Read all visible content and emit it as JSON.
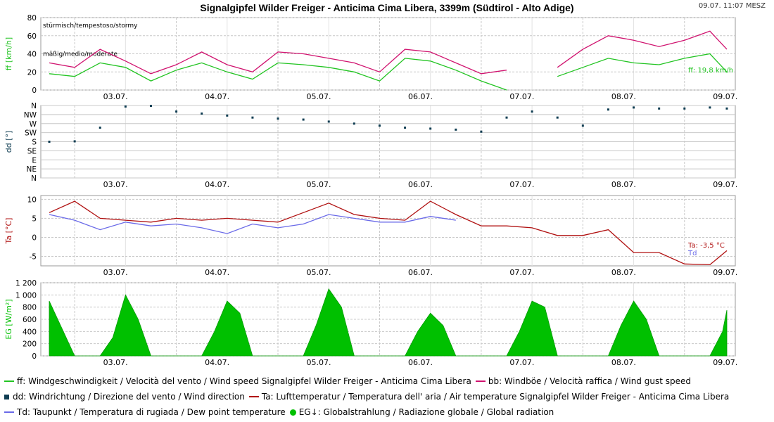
{
  "header": {
    "title": "Signalgipfel Wilder Freiger - Anticima Cima Libera, 3399m (Südtirol - Alto Adige)",
    "timestamp": "09.07. 11:07 MESZ"
  },
  "x_tick_labels": [
    "03.07.",
    "04.07.",
    "05.07.",
    "06.07.",
    "07.07.",
    "08.07.",
    "09.07."
  ],
  "colors": {
    "wind_speed": "#22c422",
    "wind_gust": "#d0136f",
    "wind_dir": "#0f3d52",
    "air_temp": "#b01010",
    "dew_point": "#6a6ae8",
    "radiation": "#00c000",
    "grid": "#c8c8c8",
    "frame": "#9a9a9a"
  },
  "chart_data": [
    {
      "type": "line",
      "ylabel": "ff [km/h]",
      "ylim": [
        0,
        80
      ],
      "yticks": [
        0,
        20,
        40,
        60,
        80
      ],
      "zones": [
        "stürmisch/tempestoso/stormy",
        "mäßig/medio/moderate"
      ],
      "current_label": "ff: 19,8 km/h",
      "x": [
        "02.07. 18:00",
        "03.07. 00:00",
        "03.07. 06:00",
        "03.07. 12:00",
        "03.07. 18:00",
        "04.07. 00:00",
        "04.07. 06:00",
        "04.07. 12:00",
        "04.07. 18:00",
        "05.07. 00:00",
        "05.07. 06:00",
        "05.07. 12:00",
        "05.07. 18:00",
        "06.07. 00:00",
        "06.07. 06:00",
        "06.07. 12:00",
        "06.07. 18:00",
        "07.07. 00:00",
        "07.07. 06:00",
        "07.07. 12:00",
        "07.07. 18:00",
        "08.07. 00:00",
        "08.07. 06:00",
        "08.07. 12:00",
        "08.07. 18:00",
        "09.07. 00:00",
        "09.07. 06:00",
        "09.07. 10:00"
      ],
      "series": [
        {
          "name": "ff",
          "values": [
            18,
            15,
            30,
            25,
            10,
            22,
            30,
            20,
            12,
            30,
            28,
            25,
            20,
            10,
            35,
            32,
            22,
            10,
            0,
            null,
            15,
            25,
            35,
            30,
            28,
            35,
            40,
            20
          ]
        },
        {
          "name": "bb",
          "values": [
            30,
            25,
            45,
            32,
            18,
            28,
            42,
            28,
            20,
            42,
            40,
            35,
            30,
            20,
            45,
            42,
            30,
            18,
            22,
            null,
            25,
            45,
            60,
            55,
            48,
            55,
            65,
            45
          ]
        }
      ]
    },
    {
      "type": "scatter",
      "ylabel": "dd [°]",
      "yticks": [
        "N",
        "NW",
        "W",
        "SW",
        "S",
        "SE",
        "E",
        "NE",
        "N"
      ],
      "ylim": [
        0,
        360
      ],
      "x": [
        "02.07. 18:00",
        "03.07. 00:00",
        "03.07. 06:00",
        "03.07. 12:00",
        "03.07. 18:00",
        "04.07. 00:00",
        "04.07. 06:00",
        "04.07. 12:00",
        "04.07. 18:00",
        "05.07. 00:00",
        "05.07. 06:00",
        "05.07. 12:00",
        "05.07. 18:00",
        "06.07. 00:00",
        "06.07. 06:00",
        "06.07. 12:00",
        "06.07. 18:00",
        "07.07. 00:00",
        "07.07. 06:00",
        "07.07. 12:00",
        "07.07. 18:00",
        "08.07. 00:00",
        "08.07. 06:00",
        "08.07. 12:00",
        "08.07. 18:00",
        "09.07. 00:00",
        "09.07. 06:00",
        "09.07. 10:00"
      ],
      "series": [
        {
          "name": "dd",
          "values": [
            180,
            182,
            250,
            355,
            358,
            330,
            320,
            310,
            300,
            295,
            290,
            280,
            270,
            260,
            250,
            245,
            240,
            230,
            300,
            330,
            300,
            260,
            340,
            350,
            345,
            345,
            350,
            345
          ]
        }
      ]
    },
    {
      "type": "line",
      "ylabel": "Ta [°C]",
      "ylim": [
        -7.5,
        11
      ],
      "yticks": [
        -5,
        0,
        5,
        10
      ],
      "current_label": "Ta: -3,5 °C",
      "dew_label": "Td",
      "x": [
        "02.07. 18:00",
        "03.07. 00:00",
        "03.07. 06:00",
        "03.07. 12:00",
        "03.07. 18:00",
        "04.07. 00:00",
        "04.07. 06:00",
        "04.07. 12:00",
        "04.07. 18:00",
        "05.07. 00:00",
        "05.07. 06:00",
        "05.07. 12:00",
        "05.07. 18:00",
        "06.07. 00:00",
        "06.07. 06:00",
        "06.07. 12:00",
        "06.07. 18:00",
        "07.07. 00:00",
        "07.07. 06:00",
        "07.07. 12:00",
        "07.07. 18:00",
        "08.07. 00:00",
        "08.07. 06:00",
        "08.07. 12:00",
        "08.07. 18:00",
        "09.07. 00:00",
        "09.07. 06:00",
        "09.07. 10:00"
      ],
      "series": [
        {
          "name": "Ta",
          "values": [
            6.5,
            9.5,
            5.0,
            4.5,
            4.0,
            5.0,
            4.5,
            5.0,
            4.5,
            4.0,
            6.5,
            9.0,
            6.0,
            5.0,
            4.5,
            9.5,
            6.0,
            3.0,
            3.0,
            2.5,
            0.5,
            0.5,
            2.0,
            -4.0,
            -4.0,
            -7.0,
            -7.2,
            -3.5
          ]
        },
        {
          "name": "Td",
          "values": [
            6.0,
            4.5,
            2.0,
            4.0,
            3.0,
            3.5,
            2.5,
            1.0,
            3.5,
            2.5,
            3.5,
            6.0,
            5.0,
            4.0,
            4.0,
            5.5,
            4.5,
            null,
            null,
            null,
            null,
            null,
            null,
            null,
            null,
            null,
            null,
            null
          ]
        }
      ]
    },
    {
      "type": "area",
      "ylabel": "EG [W/m²]",
      "ylim": [
        0,
        1200
      ],
      "yticks": [
        "0",
        "200",
        "400",
        "600",
        "800",
        "1 000",
        "1 200"
      ],
      "x": [
        "02.07. 18:00",
        "03.07. 00:00",
        "03.07. 06:00",
        "03.07. 09:00",
        "03.07. 12:00",
        "03.07. 15:00",
        "03.07. 18:00",
        "04.07. 06:00",
        "04.07. 09:00",
        "04.07. 12:00",
        "04.07. 15:00",
        "04.07. 18:00",
        "05.07. 06:00",
        "05.07. 09:00",
        "05.07. 12:00",
        "05.07. 15:00",
        "05.07. 18:00",
        "06.07. 06:00",
        "06.07. 09:00",
        "06.07. 12:00",
        "06.07. 15:00",
        "06.07. 18:00",
        "07.07. 06:00",
        "07.07. 09:00",
        "07.07. 12:00",
        "07.07. 15:00",
        "07.07. 18:00",
        "08.07. 06:00",
        "08.07. 09:00",
        "08.07. 12:00",
        "08.07. 15:00",
        "08.07. 18:00",
        "09.07. 06:00",
        "09.07. 09:00",
        "09.07. 10:00"
      ],
      "series": [
        {
          "name": "EG",
          "values": [
            900,
            0,
            0,
            300,
            1000,
            600,
            0,
            0,
            400,
            900,
            700,
            0,
            0,
            500,
            1100,
            800,
            0,
            0,
            400,
            700,
            500,
            0,
            0,
            400,
            900,
            800,
            0,
            0,
            500,
            900,
            600,
            0,
            0,
            400,
            750
          ]
        }
      ]
    }
  ],
  "legend": [
    [
      {
        "symbol": "line",
        "color_key": "wind_speed",
        "text": "ff: Windgeschwindigkeit / Velocità del vento / Wind speed  Signalgipfel Wilder Freiger - Anticima Cima Libera"
      },
      {
        "symbol": "line",
        "color_key": "wind_gust",
        "text": "bb: Windböe / Velocità raffica / Wind gust speed"
      }
    ],
    [
      {
        "symbol": "square",
        "color_key": "wind_dir",
        "text": "dd: Windrichtung / Direzione del vento / Wind direction"
      },
      {
        "symbol": "line",
        "color_key": "air_temp",
        "text": "Ta: Lufttemperatur / Temperatura dell' aria / Air temperature  Signalgipfel Wilder Freiger - Anticima Cima Libera"
      }
    ],
    [
      {
        "symbol": "line",
        "color_key": "dew_point",
        "text": "Td: Taupunkt / Temperatura di rugiada / Dew point temperature"
      },
      {
        "symbol": "circle",
        "color_key": "radiation",
        "text": "EG↓: Globalstrahlung / Radiazione globale / Global radiation"
      }
    ]
  ]
}
